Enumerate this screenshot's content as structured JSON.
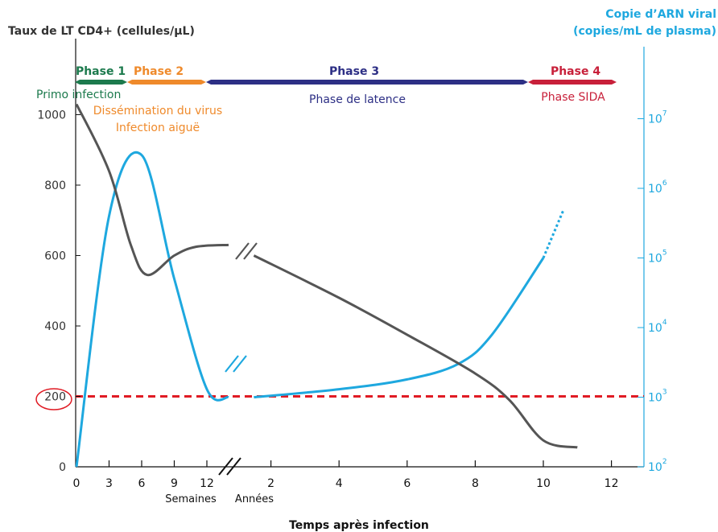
{
  "colors": {
    "cd4": "#555555",
    "viral": "#1ea8df",
    "threshold": "#e01b24",
    "phase1": "#1c7a4d",
    "phase2": "#ef8a2b",
    "phase3": "#2d2f85",
    "phase4": "#c8203a",
    "axis": "#111111"
  },
  "chart_data": {
    "type": "line",
    "ylabel_left": "Taux de LT CD4+ (cellules/µL)",
    "ylabel_right": "Copie d’ARN viral\n(copies/mL de plasma)",
    "xlabel": "Temps après infection",
    "x_unit_weeks": "Semaines",
    "x_unit_years": "Années",
    "y_left": {
      "min": 0,
      "max": 1000,
      "ticks": [
        "0",
        "200",
        "400",
        "600",
        "800",
        "1000"
      ],
      "highlighted_tick": "200"
    },
    "y_right": {
      "scale": "log",
      "ticks": [
        {
          "base": "10",
          "exp": "2"
        },
        {
          "base": "10",
          "exp": "3"
        },
        {
          "base": "10",
          "exp": "4"
        },
        {
          "base": "10",
          "exp": "5"
        },
        {
          "base": "10",
          "exp": "6"
        },
        {
          "base": "10",
          "exp": "7"
        }
      ]
    },
    "x_weeks_ticks": [
      "0",
      "3",
      "6",
      "9",
      "12"
    ],
    "x_years_ticks": [
      "2",
      "4",
      "6",
      "8",
      "10",
      "12"
    ],
    "phases": [
      {
        "name": "Phase 1",
        "description": "Primo infection"
      },
      {
        "name": "Phase 2",
        "description": "Dissémination du virus\nInfection aiguë"
      },
      {
        "name": "Phase 3",
        "description": "Phase de latence"
      },
      {
        "name": "Phase 4",
        "description": "Phase SIDA"
      }
    ],
    "threshold_cd4": 200,
    "series": [
      {
        "axis": "left",
        "points_weeks": [
          [
            0,
            1030
          ],
          [
            3,
            840
          ],
          [
            5,
            630
          ],
          [
            6.5,
            545
          ],
          [
            9,
            600
          ],
          [
            11,
            625
          ],
          [
            14,
            630
          ]
        ],
        "points_years": [
          [
            1.5,
            600
          ],
          [
            4,
            480
          ],
          [
            6,
            375
          ],
          [
            8,
            265
          ],
          [
            9,
            190
          ],
          [
            10,
            75
          ],
          [
            11,
            55
          ]
        ]
      },
      {
        "axis": "right",
        "points_weeks": [
          [
            0,
            100
          ],
          [
            3,
            400000
          ],
          [
            6,
            3000000
          ],
          [
            9,
            50000
          ],
          [
            12,
            1300
          ],
          [
            14,
            1000
          ]
        ],
        "points_years": [
          [
            1.5,
            1000
          ],
          [
            4,
            1300
          ],
          [
            6,
            1800
          ],
          [
            7.5,
            3000
          ],
          [
            8.5,
            8000
          ],
          [
            10,
            100000
          ]
        ],
        "extrapolated_years": [
          [
            10,
            100000
          ],
          [
            10.6,
            500000
          ]
        ]
      }
    ]
  }
}
